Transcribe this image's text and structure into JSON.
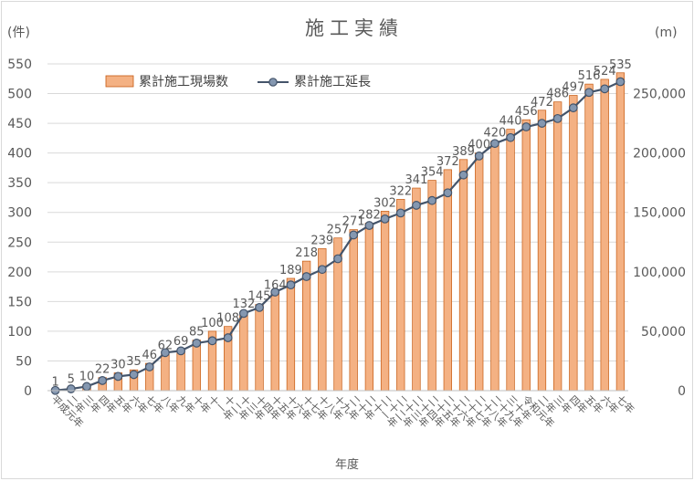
{
  "chart_data": {
    "type": "bar+line",
    "title": "施工実績",
    "xlabel": "年度",
    "ylabel_left_unit": "(件)",
    "ylabel_right_unit": "(m)",
    "ylim_left": [
      0,
      550
    ],
    "ylim_right": [
      0,
      275000
    ],
    "yticks_left": [
      "0",
      "50",
      "100",
      "150",
      "200",
      "250",
      "300",
      "350",
      "400",
      "450",
      "500",
      "550"
    ],
    "yticks_right": [
      "0",
      "50,000",
      "100,000",
      "150,000",
      "200,000",
      "250,000"
    ],
    "legend_position": "top-left",
    "grid": true,
    "categories": [
      "平成元年",
      "二年",
      "三年",
      "四年",
      "五年",
      "六年",
      "七年",
      "八年",
      "九年",
      "十年",
      "十一年",
      "十二年",
      "十三年",
      "十四年",
      "十五年",
      "十六年",
      "十七年",
      "十八年",
      "十九年",
      "二十年",
      "二十一年",
      "二十二年",
      "二十三年",
      "二十四年",
      "二十五年",
      "二十六年",
      "二十七年",
      "二十八年",
      "二十九年",
      "三十年",
      "令和元年",
      "二年",
      "三年",
      "四年",
      "五年",
      "六年",
      "七年"
    ],
    "series": [
      {
        "name": "累計施工現場数",
        "type": "bar",
        "axis": "left",
        "color": "#f4b183",
        "values": [
          1,
          5,
          10,
          22,
          30,
          35,
          46,
          62,
          69,
          85,
          100,
          108,
          132,
          145,
          164,
          189,
          218,
          239,
          257,
          271,
          282,
          302,
          322,
          341,
          354,
          372,
          389,
          400,
          420,
          440,
          456,
          472,
          486,
          497,
          516,
          524,
          535
        ]
      },
      {
        "name": "累計施工延長",
        "type": "line",
        "axis": "right",
        "color": "#44546a",
        "marker_color": "#8497b0",
        "values": [
          200,
          1500,
          3500,
          8500,
          12000,
          13500,
          20000,
          32000,
          33500,
          40000,
          42000,
          44500,
          65000,
          70000,
          83000,
          89000,
          96000,
          102000,
          111000,
          131000,
          139000,
          144500,
          149500,
          156000,
          160000,
          166500,
          181500,
          197500,
          208000,
          213000,
          222000,
          225000,
          229000,
          238000,
          251000,
          254000,
          260000
        ]
      }
    ]
  }
}
